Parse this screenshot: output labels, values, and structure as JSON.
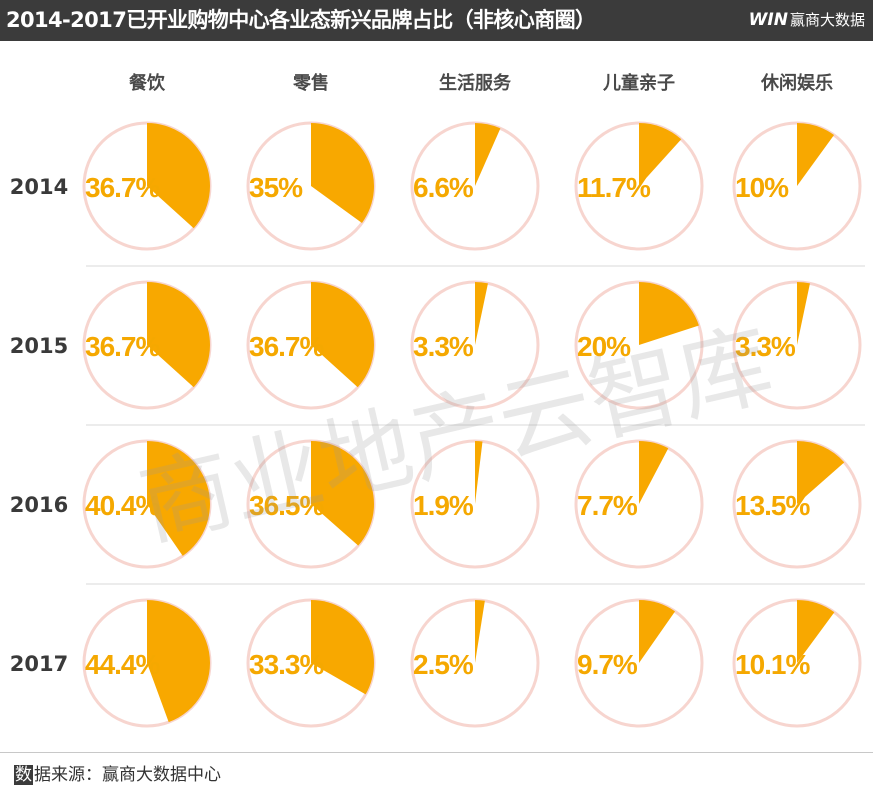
{
  "header": {
    "title": "2014-2017已开业购物中心各业态新兴品牌占比（非核心商圈）",
    "logo_mark": "WIN",
    "logo_text": "赢商大数据"
  },
  "watermark": "商业地产云智库",
  "footer": {
    "source_first_char": "数",
    "source_rest": "据来源：赢商大数据中心"
  },
  "colors": {
    "slice": "#f8a800",
    "ring": "#f7d5cf",
    "divider": "#d9d9d9"
  },
  "chart_data": {
    "type": "pie",
    "unit": "%",
    "categories": [
      "餐饮",
      "零售",
      "生活服务",
      "儿童亲子",
      "休闲娱乐"
    ],
    "years": [
      "2014",
      "2015",
      "2016",
      "2017"
    ],
    "values": [
      [
        36.7,
        35,
        6.6,
        11.7,
        10
      ],
      [
        36.7,
        36.7,
        3.3,
        20,
        3.3
      ],
      [
        40.4,
        36.5,
        1.9,
        7.7,
        13.5
      ],
      [
        44.4,
        33.3,
        2.5,
        9.7,
        10.1
      ]
    ],
    "labels": [
      [
        "36.7%",
        "35%",
        "6.6%",
        "11.7%",
        "10%"
      ],
      [
        "36.7%",
        "36.7%",
        "3.3%",
        "20%",
        "3.3%"
      ],
      [
        "40.4%",
        "36.5%",
        "1.9%",
        "7.7%",
        "13.5%"
      ],
      [
        "44.4%",
        "33.3%",
        "2.5%",
        "9.7%",
        "10.1%"
      ]
    ]
  }
}
